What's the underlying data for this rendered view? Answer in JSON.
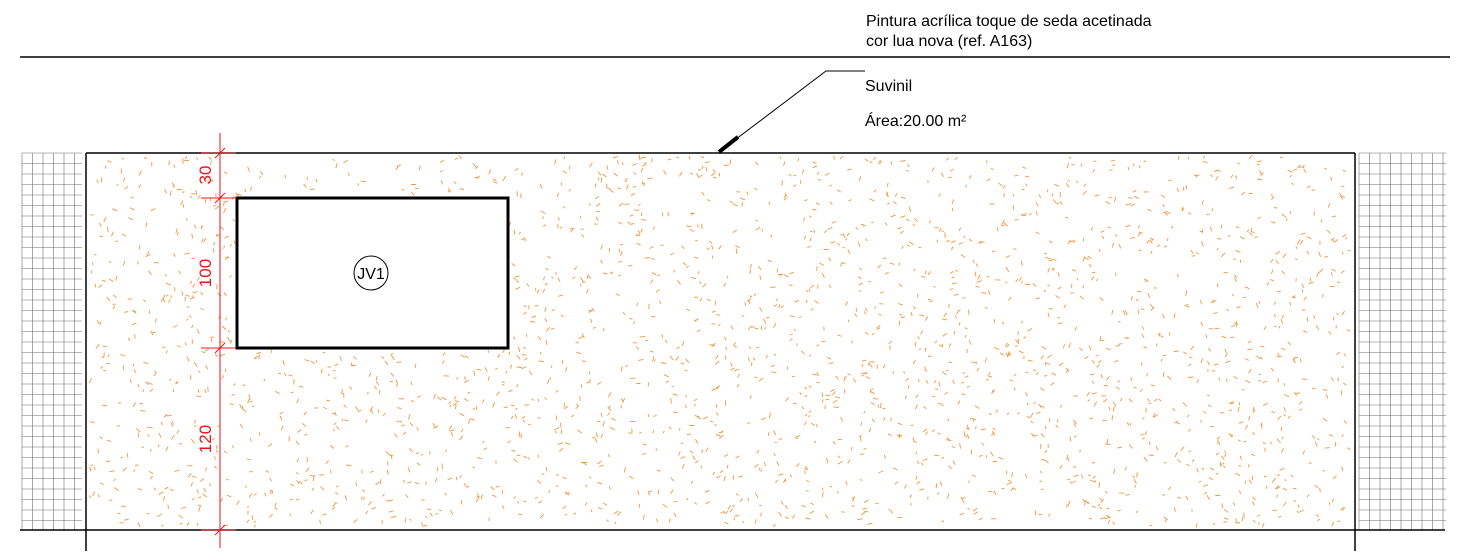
{
  "finish_note": {
    "line1": "Pintura acrílica toque de seda acetinada",
    "line2": "cor lua nova (ref. A163)",
    "brand": "Suvinil",
    "area": "Área:20.00 m²"
  },
  "dimensions": {
    "values": [
      "30",
      "100",
      "120"
    ],
    "color": "#e8141c"
  },
  "window": {
    "tag": "JV1"
  },
  "colors": {
    "line": "#000000",
    "hatch": "#f0963c",
    "tile_grid": "#6e6e6e"
  }
}
